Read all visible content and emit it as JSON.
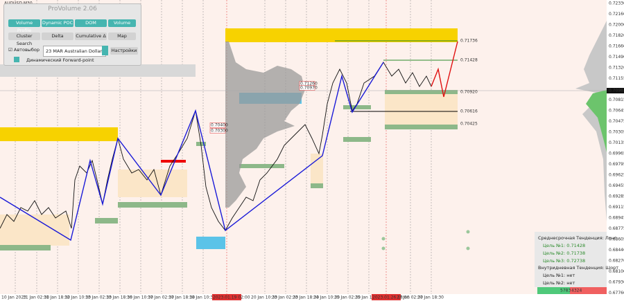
{
  "header": {
    "symbol": "AUDUSD,M30"
  },
  "panel": {
    "title": "ProVolume 2.06",
    "buttons": [
      "Volume Profile",
      "Dynamic POC",
      "DOM",
      "Volume",
      "Cluster Search",
      "Delta",
      "Cumulative Δ",
      "Map"
    ],
    "auto_label": "Автовыбор",
    "instrument": "23 MAR Australian Dollar",
    "settings": "Настройки",
    "forward_point": "Динамический Forward-point"
  },
  "price_axis": [
    "0.72330",
    "0.72160",
    "0.72000",
    "0.71820",
    "0.71660",
    "0.71490",
    "0.71320",
    "0.71155",
    "0.70963",
    "0.70815",
    "0.70645",
    "0.70475",
    "0.70305",
    "0.70135",
    "0.69965",
    "0.69795",
    "0.69625",
    "0.69455",
    "0.69285",
    "0.69115",
    "0.68945",
    "0.68775",
    "0.68605",
    "0.68440",
    "0.68270",
    "0.68100",
    "0.67930",
    "0.67760"
  ],
  "time_axis": [
    "10 Jan 2023",
    "11 Jan 02:30",
    "11 Jan 18:30",
    "12 Jan 10:30",
    "13 Jan 02:30",
    "13 Jan 18:30",
    "16 Jan 10:30",
    "17 Jan 02:30",
    "17 Jan 18:30",
    "18 Jan 10:30",
    "2023.01.19 02:00",
    "20 Jan 10:30",
    "23 Jan 02:30",
    "23 Jan 18:30",
    "24 Jan 10:30",
    "25 Jan 02:30",
    "25 Jan 18:30",
    "2023.01.26 18:00",
    "27 Jan 02:30",
    "27 Jan 18:30"
  ],
  "levels": [
    "0.71736",
    "0.71428",
    "0.70920",
    "0.70616",
    "0.70425"
  ],
  "red_levels": [
    "0.71260",
    "0.70970",
    "0.70400",
    "0.70300"
  ],
  "info": [
    "Среднесрочная Тенденция: Лонг",
    "Цель №1: 0.71428",
    "Цель №2: 0.71738",
    "Цель №3: 0.72738",
    "Внутридневная Тенденция: Шорт",
    "Цель №1: нет",
    "Цель №2: нет"
  ],
  "footer": {
    "buy": "5783",
    "sell": "4324"
  }
}
